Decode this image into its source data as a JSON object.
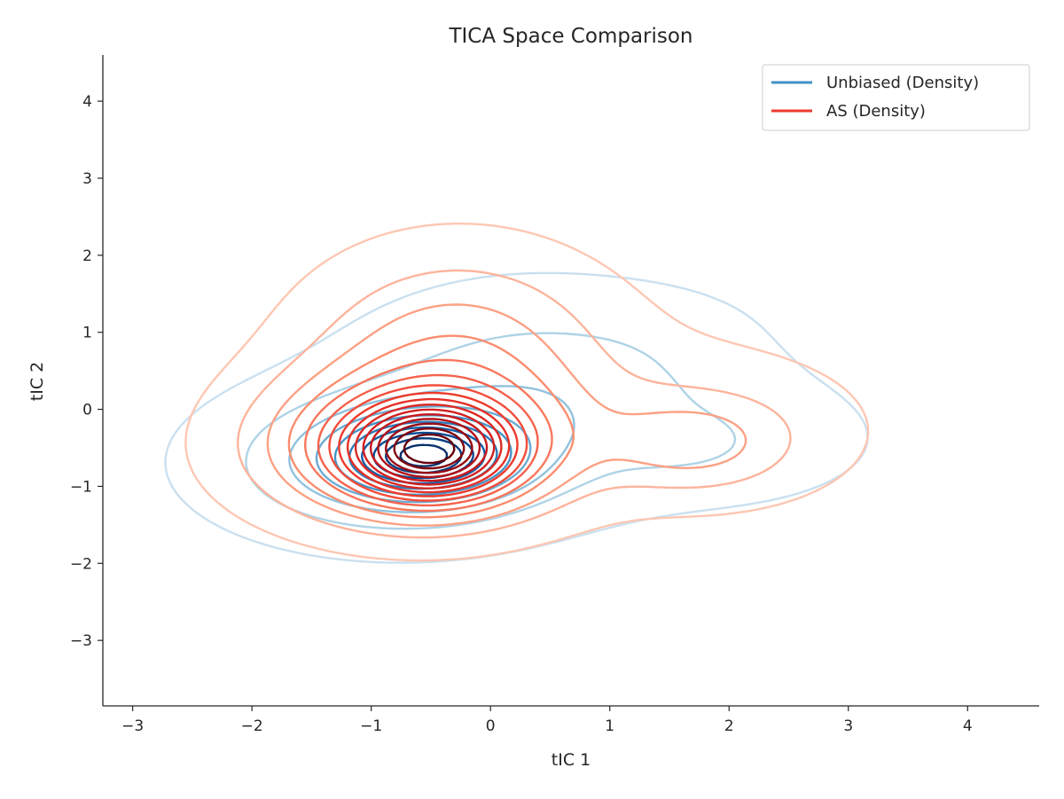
{
  "chart_data": {
    "type": "contour",
    "title": "TICA Space Comparison",
    "xlabel": "tIC 1",
    "ylabel": "tIC 2",
    "xlim": [
      -3.25,
      4.6
    ],
    "ylim": [
      -3.85,
      4.6
    ],
    "xticks": [
      -3,
      -2,
      -1,
      0,
      1,
      2,
      3,
      4
    ],
    "xtick_labels": [
      "−3",
      "−2",
      "−1",
      "0",
      "1",
      "2",
      "3",
      "4"
    ],
    "yticks": [
      -3,
      -2,
      -1,
      0,
      1,
      2,
      3,
      4
    ],
    "ytick_labels": [
      "−3",
      "−2",
      "−1",
      "0",
      "1",
      "2",
      "3",
      "4"
    ],
    "grid": false,
    "legend": {
      "position": "top-right",
      "entries": [
        {
          "label": "Unbiased (Density)",
          "color": "#4292c6"
        },
        {
          "label": "AS (Density)",
          "color": "#ef3b2c"
        }
      ]
    },
    "series": [
      {
        "name": "Unbiased (Density)",
        "colormap": "Blues",
        "levels": 10,
        "components": [
          {
            "weight": 1.0,
            "mx": -0.55,
            "my": -0.6,
            "sx": 0.42,
            "sy": 0.3
          },
          {
            "weight": 0.55,
            "mx": -0.8,
            "my": -0.7,
            "sx": 0.9,
            "sy": 0.6
          },
          {
            "weight": 0.3,
            "mx": 0.4,
            "my": 0.3,
            "sx": 1.0,
            "sy": 0.8
          },
          {
            "weight": 0.1,
            "mx": 1.6,
            "my": -0.45,
            "sx": 0.35,
            "sy": 0.22
          },
          {
            "weight": 0.12,
            "mx": 2.0,
            "my": -0.4,
            "sx": 0.9,
            "sy": 0.6
          },
          {
            "weight": 0.035,
            "mx": 1.6,
            "my": 1.0,
            "sx": 0.6,
            "sy": 0.45
          }
        ]
      },
      {
        "name": "AS (Density)",
        "colormap": "Reds",
        "levels": 16,
        "components": [
          {
            "weight": 1.0,
            "mx": -0.5,
            "my": -0.55,
            "sx": 0.45,
            "sy": 0.4
          },
          {
            "weight": 0.65,
            "mx": -0.65,
            "my": -0.5,
            "sx": 0.85,
            "sy": 0.65
          },
          {
            "weight": 0.3,
            "mx": -0.3,
            "my": 0.7,
            "sx": 0.8,
            "sy": 0.9
          },
          {
            "weight": 0.2,
            "mx": 1.7,
            "my": -0.45,
            "sx": 0.5,
            "sy": 0.4
          },
          {
            "weight": 0.12,
            "mx": 2.0,
            "my": -0.3,
            "sx": 0.9,
            "sy": 0.7
          },
          {
            "weight": 0.05,
            "mx": 0.3,
            "my": 0.5,
            "sx": 1.6,
            "sy": 1.2
          }
        ]
      }
    ]
  }
}
